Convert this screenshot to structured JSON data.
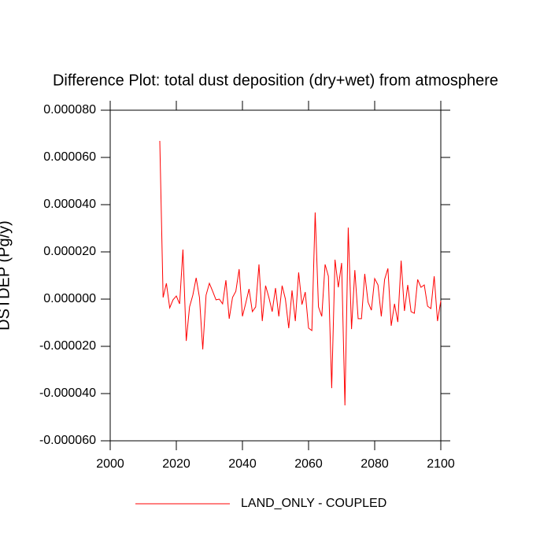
{
  "chart_data": {
    "type": "line",
    "title": "Difference Plot: total dust deposition (dry+wet) from atmosphere",
    "y_label": "DSTDEP  (Pg/y)",
    "x": [
      2015,
      2016,
      2017,
      2018,
      2019,
      2020,
      2021,
      2022,
      2023,
      2024,
      2025,
      2026,
      2027,
      2028,
      2029,
      2030,
      2031,
      2032,
      2033,
      2034,
      2035,
      2036,
      2037,
      2038,
      2039,
      2040,
      2041,
      2042,
      2043,
      2044,
      2045,
      2046,
      2047,
      2048,
      2049,
      2050,
      2051,
      2052,
      2053,
      2054,
      2055,
      2056,
      2057,
      2058,
      2059,
      2060,
      2061,
      2062,
      2063,
      2064,
      2065,
      2066,
      2067,
      2068,
      2069,
      2070,
      2071,
      2072,
      2073,
      2074,
      2075,
      2076,
      2077,
      2078,
      2079,
      2080,
      2081,
      2082,
      2083,
      2084,
      2085,
      2086,
      2087,
      2088,
      2089,
      2090,
      2091,
      2092,
      2093,
      2094,
      2095,
      2096,
      2097,
      2098,
      2099,
      2100
    ],
    "series": [
      {
        "name": "LAND_ONLY - COUPLED",
        "color": "#ff0000",
        "values": [
          6.7e-05,
          7e-07,
          6.7e-06,
          -3.7e-06,
          -3e-07,
          1.3e-06,
          -2e-06,
          2.1e-05,
          -1.77e-05,
          -3.3e-06,
          1.7e-06,
          9e-06,
          7e-07,
          -2.13e-05,
          1.7e-06,
          6.7e-06,
          3.3e-06,
          -3e-07,
          0,
          -2e-06,
          8e-06,
          -8.3e-06,
          7e-07,
          3.3e-06,
          1.27e-05,
          -7.3e-06,
          -1.7e-06,
          4.3e-06,
          -5.3e-06,
          -3.3e-06,
          1.47e-05,
          -9.3e-06,
          5.7e-06,
          7e-07,
          -5.3e-06,
          4.7e-06,
          -7.3e-06,
          5.7e-06,
          0,
          -1.23e-05,
          3.7e-06,
          -9.3e-06,
          1.13e-05,
          -2.3e-06,
          3e-06,
          -1.23e-05,
          -1.33e-05,
          3.67e-05,
          -3.3e-06,
          -7.3e-06,
          1.47e-05,
          9.7e-06,
          -3.77e-05,
          1.67e-05,
          5e-06,
          1.53e-05,
          -4.5e-05,
          3.03e-05,
          -1.27e-05,
          1.23e-05,
          -8.3e-06,
          -8.3e-06,
          1.07e-05,
          -1.3e-06,
          -4.7e-06,
          8.7e-06,
          6e-06,
          -7.3e-06,
          8.3e-06,
          1.3e-05,
          -1.13e-05,
          -2e-06,
          -9.7e-06,
          1.63e-05,
          -5e-06,
          6e-06,
          -5.3e-06,
          -6e-06,
          8.3e-06,
          5e-06,
          6e-06,
          -3e-06,
          -4e-06,
          9.7e-06,
          -9.3e-06,
          -7e-07
        ]
      }
    ],
    "xlim": [
      2000,
      2100
    ],
    "xticks": [
      2000,
      2020,
      2040,
      2060,
      2080,
      2100
    ],
    "ylim": [
      -6e-05,
      8e-05
    ],
    "yticks": [
      {
        "value": -6e-05,
        "label": "-0.000060"
      },
      {
        "value": -4e-05,
        "label": "-0.000040"
      },
      {
        "value": -2e-05,
        "label": "-0.000020"
      },
      {
        "value": 0,
        "label": "0.000000"
      },
      {
        "value": 2e-05,
        "label": "0.000020"
      },
      {
        "value": 4e-05,
        "label": "0.000040"
      },
      {
        "value": 6e-05,
        "label": "0.000060"
      },
      {
        "value": 8e-05,
        "label": "0.000080"
      }
    ],
    "legend": "bottom"
  }
}
